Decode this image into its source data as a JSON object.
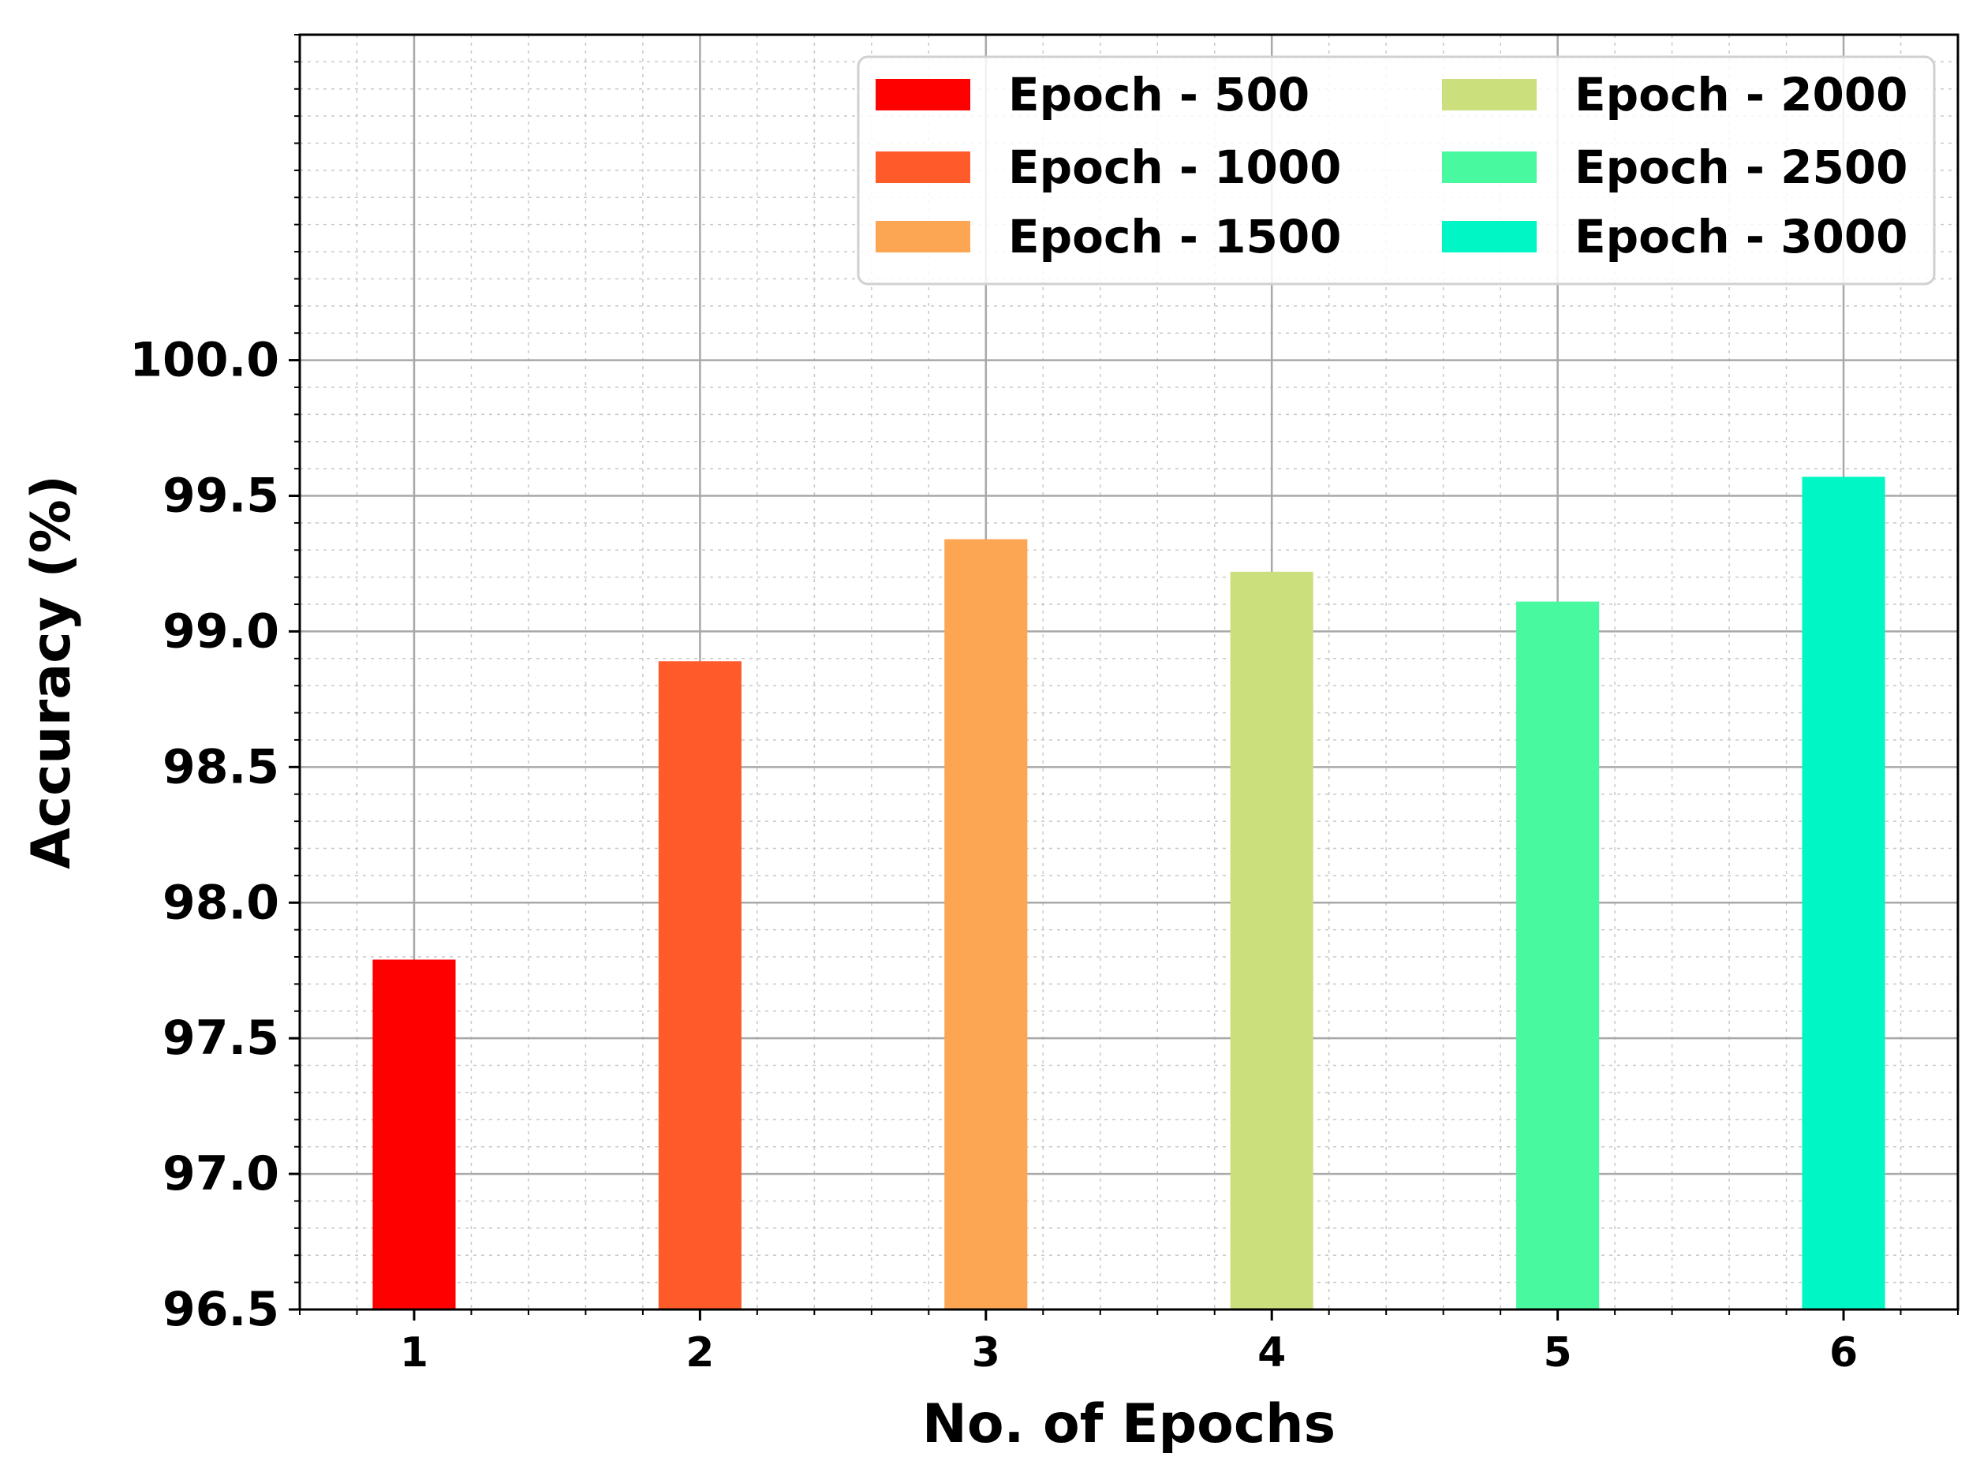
{
  "chart_data": {
    "type": "bar",
    "x": [
      1,
      2,
      3,
      4,
      5,
      6
    ],
    "xlabel": "No. of Epochs",
    "ylabel": "Accuracy (%)",
    "ylim": [
      96.5,
      101.2
    ],
    "xlim": [
      0.6,
      6.4
    ],
    "yticks": [
      96.5,
      97.0,
      97.5,
      98.0,
      98.5,
      99.0,
      99.5,
      100.0
    ],
    "ytick_labels": [
      "96.5",
      "97.0",
      "97.5",
      "98.0",
      "98.5",
      "99.0",
      "99.5",
      "100.0"
    ],
    "xtick_labels": [
      "1",
      "2",
      "3",
      "4",
      "5",
      "6"
    ],
    "grid": true,
    "legend_position": "top-right",
    "series": [
      {
        "name": "Epoch - 500",
        "x": 1,
        "value": 97.79,
        "color": "#ff0000"
      },
      {
        "name": "Epoch - 1000",
        "x": 2,
        "value": 98.89,
        "color": "#ff5a2a"
      },
      {
        "name": "Epoch - 1500",
        "x": 3,
        "value": 99.34,
        "color": "#fca552"
      },
      {
        "name": "Epoch - 2000",
        "x": 4,
        "value": 99.22,
        "color": "#cbe07c"
      },
      {
        "name": "Epoch - 2500",
        "x": 5,
        "value": 99.11,
        "color": "#48f9a0"
      },
      {
        "name": "Epoch - 3000",
        "x": 6,
        "value": 99.57,
        "color": "#00f7c5"
      }
    ]
  }
}
